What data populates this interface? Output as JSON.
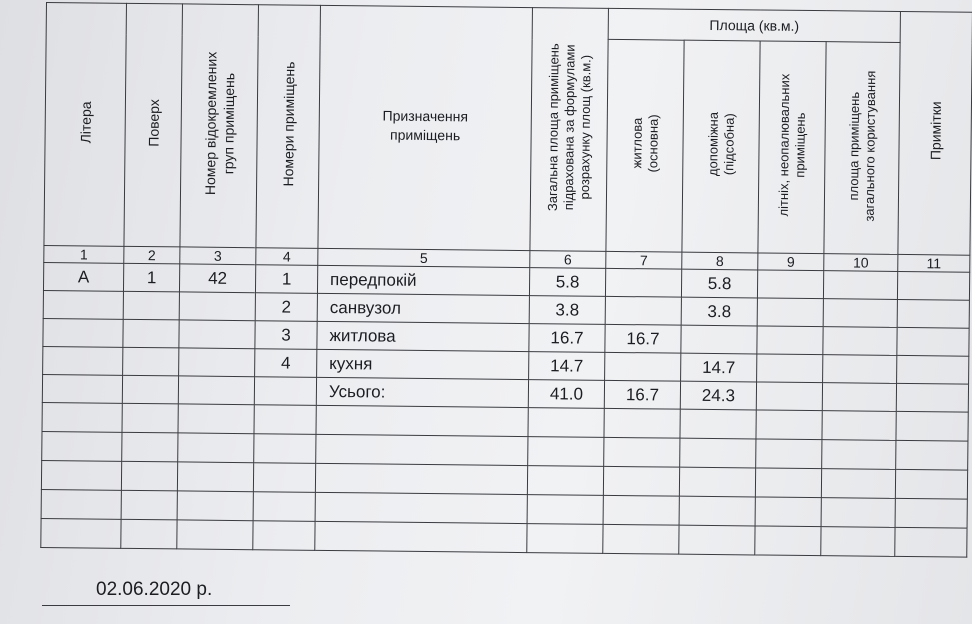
{
  "headers": {
    "litera": "Літера",
    "poverkh": "Поверх",
    "group_no": "Номер відокремлених\nгруп приміщень",
    "room_no": "Номери приміщень",
    "purpose": "Призначення\nприміщень",
    "total_area": "Загальна площа приміщень\nпідрахована за формулами\nрозрахунку площ (кв.м.)",
    "area_group": "Площа (кв.м.)",
    "living": "житлова\n(основна)",
    "auxiliary": "допоміжна\n(підсобна)",
    "summer": "літніх, неопалювальних\nприміщень",
    "common": "площа приміщень\nзагального користування",
    "notes": "Примітки"
  },
  "column_numbers": [
    "1",
    "2",
    "3",
    "4",
    "5",
    "6",
    "7",
    "8",
    "9",
    "10",
    "11"
  ],
  "rows": [
    {
      "litera": "А",
      "floor": "1",
      "group": "42",
      "room": "1",
      "name": "передпокій",
      "total": "5.8",
      "living": "",
      "aux": "5.8",
      "summer": "",
      "common": "",
      "notes": ""
    },
    {
      "litera": "",
      "floor": "",
      "group": "",
      "room": "2",
      "name": "санвузол",
      "total": "3.8",
      "living": "",
      "aux": "3.8",
      "summer": "",
      "common": "",
      "notes": ""
    },
    {
      "litera": "",
      "floor": "",
      "group": "",
      "room": "3",
      "name": "житлова",
      "total": "16.7",
      "living": "16.7",
      "aux": "",
      "summer": "",
      "common": "",
      "notes": ""
    },
    {
      "litera": "",
      "floor": "",
      "group": "",
      "room": "4",
      "name": "кухня",
      "total": "14.7",
      "living": "",
      "aux": "14.7",
      "summer": "",
      "common": "",
      "notes": ""
    },
    {
      "litera": "",
      "floor": "",
      "group": "",
      "room": "",
      "name": "Усього:",
      "total": "41.0",
      "living": "16.7",
      "aux": "24.3",
      "summer": "",
      "common": "",
      "notes": ""
    }
  ],
  "empty_row_count": 5,
  "date": "02.06.2020 р."
}
